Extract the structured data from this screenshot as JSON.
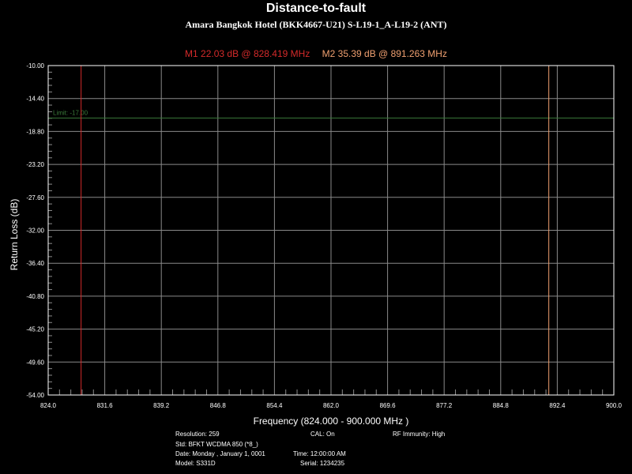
{
  "chart_data": {
    "type": "line",
    "title": "Distance-to-fault",
    "subtitle": "Amara Bangkok Hotel (BKK4667-U21) S-L19-1_A-L19-2 (ANT)",
    "xlabel": "Frequency (824.000 - 900.000 MHz )",
    "ylabel": "Return Loss (dB)",
    "xlim": [
      824.0,
      900.0
    ],
    "ylim": [
      -10.0,
      -54.0
    ],
    "x_ticks": [
      "824.0",
      "831.6",
      "839.2",
      "846.8",
      "854.4",
      "862.0",
      "869.6",
      "877.2",
      "884.8",
      "892.4",
      "900.0"
    ],
    "y_ticks": [
      "-54.00",
      "-49.60",
      "-45.20",
      "-40.80",
      "-36.40",
      "-32.00",
      "-27.60",
      "-23.20",
      "-18.80",
      "-14.40",
      "-10.00"
    ],
    "grid": true,
    "series": [],
    "limit": {
      "label": "Limit: -17.00",
      "value": -17.0,
      "color": "#3a7a3a"
    },
    "markers": [
      {
        "label": "M1  22.03 dB @ 828.419 MHz",
        "x": 828.419,
        "color": "#d42a2a"
      },
      {
        "label": "M2  35.39 dB @ 891.263 MHz",
        "x": 891.263,
        "color": "#f0a070"
      }
    ]
  },
  "info": {
    "resolution": "Resolution: 259",
    "cal": "CAL: On",
    "rf_immunity": "RF Immunity: High",
    "std": "Std: BFKT WCDMA 850 (*8_)",
    "date": "Date: Monday , January 1, 0001",
    "time": "Time: 12:00:00 AM",
    "model": "Model: S331D",
    "serial": "Serial: 1234235"
  },
  "colors": {
    "background": "#000000",
    "grid": "#8a8a8a",
    "frame": "#ffffff",
    "text": "#ffffff"
  }
}
